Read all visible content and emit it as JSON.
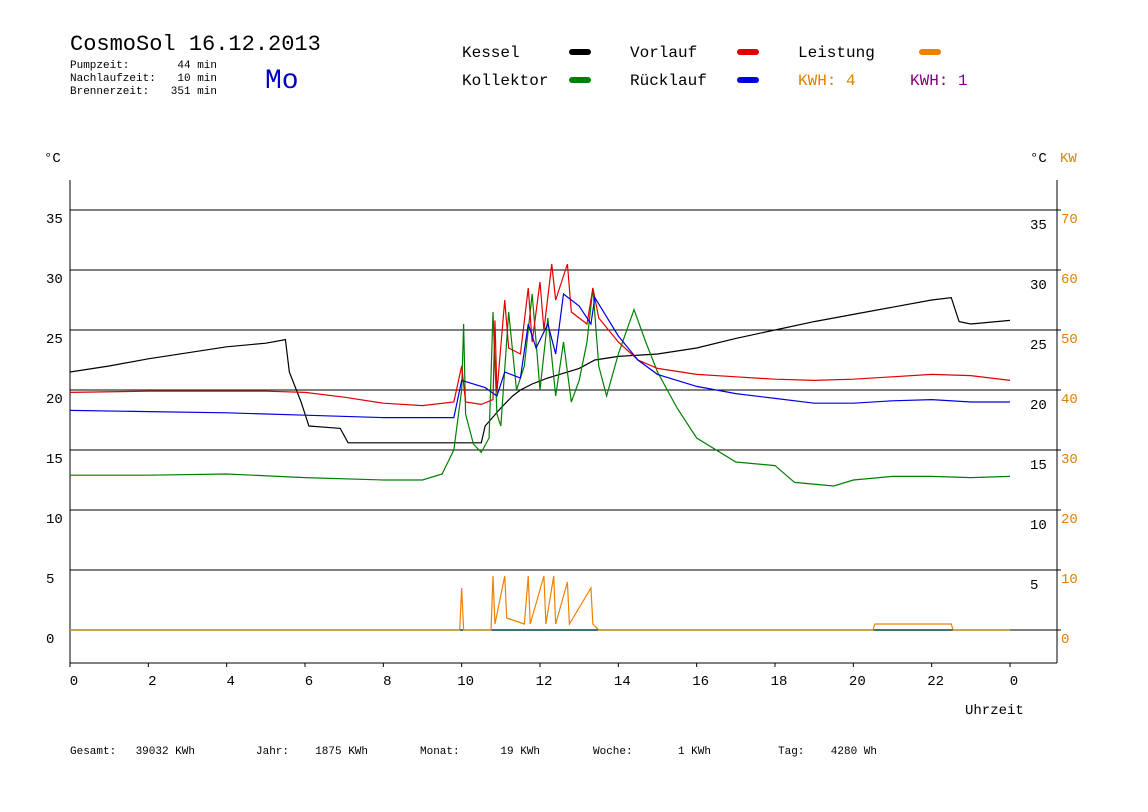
{
  "chart_data": {
    "type": "line",
    "title": "CosmoSol 16.12.2013",
    "day": "Mo",
    "stats": [
      {
        "label": "Pumpzeit:",
        "value": "44 min"
      },
      {
        "label": "Nachlaufzeit:",
        "value": "10 min"
      },
      {
        "label": "Brennerzeit:",
        "value": "351 min"
      }
    ],
    "y_label": "°C",
    "y2_label": "°C",
    "y2_unit_label": "KW",
    "x_label": "Uhrzeit",
    "kwh_labels": [
      {
        "text": "KWH: 4",
        "color": "#e08000"
      },
      {
        "text": "KWH: 1",
        "color": "#800080"
      }
    ],
    "footer": [
      {
        "label": "Gesamt:",
        "value": "39032 KWh"
      },
      {
        "label": "Jahr:",
        "value": "1875 KWh"
      },
      {
        "label": "Monat:",
        "value": "19 KWh"
      },
      {
        "label": "Woche:",
        "value": "1 KWh"
      },
      {
        "label": "Tag:",
        "value": "4280 Wh"
      }
    ],
    "xlim": [
      0,
      25.2
    ],
    "xticks": [
      0,
      2,
      4,
      6,
      8,
      10,
      12,
      14,
      16,
      18,
      20,
      22,
      {
        "value": 24,
        "label": "0"
      }
    ],
    "ylim": [
      -2.75,
      37.5
    ],
    "yticks": [
      0,
      5,
      10,
      15,
      20,
      25,
      30,
      35
    ],
    "y2lim": [
      -5.5,
      75
    ],
    "y2ticks": [
      0,
      10,
      20,
      30,
      40,
      50,
      60,
      70
    ],
    "grid": true,
    "series": [
      {
        "name": "Kessel",
        "color": "#000000",
        "x": [
          0,
          1,
          2,
          3,
          4,
          5,
          5.5,
          5.6,
          5.9,
          6.1,
          6.5,
          6.9,
          7.1,
          8,
          9,
          10,
          10.5,
          10.6,
          11,
          11.3,
          11.5,
          11.8,
          12.2,
          12.5,
          13,
          13.4,
          14,
          15,
          16,
          17,
          18,
          19,
          20,
          21,
          22,
          22.5,
          22.7,
          23,
          24
        ],
        "values": [
          21.5,
          22,
          22.6,
          23.1,
          23.6,
          23.9,
          24.2,
          21.5,
          19,
          17,
          16.9,
          16.8,
          15.6,
          15.6,
          15.6,
          15.6,
          15.6,
          17,
          18.5,
          19.5,
          20,
          20.5,
          21,
          21.3,
          21.8,
          22.5,
          22.8,
          23,
          23.5,
          24.3,
          25,
          25.7,
          26.3,
          26.9,
          27.5,
          27.7,
          25.7,
          25.5,
          25.8
        ]
      },
      {
        "name": "Kollektor",
        "color": "#008000",
        "x": [
          0,
          2,
          4,
          6,
          8,
          9,
          9.5,
          9.8,
          10,
          10.05,
          10.1,
          10.3,
          10.5,
          10.7,
          10.8,
          10.9,
          11,
          11.2,
          11.4,
          11.6,
          11.8,
          12,
          12.2,
          12.4,
          12.6,
          12.8,
          13,
          13.2,
          13.35,
          13.5,
          13.7,
          14,
          14.4,
          14.7,
          15,
          15.5,
          16,
          17,
          18,
          18.5,
          19.5,
          20,
          21,
          22,
          23,
          24
        ],
        "values": [
          12.9,
          12.9,
          13,
          12.7,
          12.5,
          12.5,
          13,
          15,
          20,
          25.5,
          18,
          15.5,
          14.8,
          16,
          26.5,
          18,
          17,
          26.5,
          20,
          22,
          28,
          20,
          26,
          19.5,
          24,
          19,
          20.8,
          24,
          28.5,
          22,
          19.5,
          23,
          26.7,
          24,
          21.5,
          18.5,
          16,
          14,
          13.7,
          12.3,
          12,
          12.5,
          12.8,
          12.8,
          12.7,
          12.8
        ]
      },
      {
        "name": "Vorlauf",
        "color": "#e00000",
        "x": [
          0,
          2,
          5,
          6,
          7,
          8,
          9,
          9.8,
          10,
          10.1,
          10.5,
          10.8,
          10.85,
          10.9,
          11.1,
          11.2,
          11.5,
          11.7,
          11.8,
          12,
          12.1,
          12.3,
          12.4,
          12.7,
          12.8,
          13.2,
          13.35,
          13.5,
          14,
          14.5,
          15,
          16,
          17,
          18,
          19,
          20,
          21,
          22,
          23,
          24
        ],
        "values": [
          19.8,
          19.9,
          19.9,
          19.8,
          19.4,
          18.9,
          18.7,
          19,
          22,
          19,
          18.8,
          19.2,
          25.8,
          19.8,
          27.5,
          23.5,
          23,
          28.5,
          24,
          29,
          25,
          30.5,
          27.5,
          30.5,
          26.5,
          25.5,
          28.5,
          26,
          24,
          22.5,
          21.8,
          21.3,
          21.1,
          20.9,
          20.8,
          20.9,
          21.1,
          21.3,
          21.2,
          20.8
        ]
      },
      {
        "name": "Rücklauf",
        "color": "#0000e0",
        "x": [
          0,
          2,
          4,
          6,
          8,
          9.8,
          10,
          10.6,
          10.9,
          11.1,
          11.5,
          11.7,
          11.9,
          12.2,
          12.4,
          12.6,
          13,
          13.3,
          13.4,
          14,
          14.5,
          15,
          16,
          17,
          18,
          19,
          20,
          21,
          22,
          23,
          24
        ],
        "values": [
          18.3,
          18.2,
          18.1,
          17.9,
          17.7,
          17.7,
          20.8,
          20.2,
          19.5,
          21.5,
          21,
          25.5,
          23.5,
          25.5,
          23,
          28,
          27,
          25.5,
          27.7,
          24.5,
          22.5,
          21.3,
          20.3,
          19.7,
          19.3,
          18.9,
          18.9,
          19.1,
          19.2,
          19,
          19
        ]
      },
      {
        "name": "Leistung",
        "color": "#f08000",
        "axis": "y2",
        "x": [
          0,
          9.95,
          10,
          10.05,
          10.75,
          10.8,
          10.85,
          11.1,
          11.15,
          11.6,
          11.7,
          11.75,
          12.1,
          12.15,
          12.35,
          12.4,
          12.7,
          12.75,
          13.3,
          13.35,
          13.5,
          20.5,
          20.55,
          22.5,
          22.55,
          24
        ],
        "values": [
          0,
          0,
          7,
          0,
          0,
          9,
          1,
          9,
          2,
          1,
          9,
          1,
          9,
          1,
          9,
          1,
          8,
          1,
          7,
          1,
          0,
          0,
          1,
          1,
          0,
          0
        ]
      }
    ]
  }
}
